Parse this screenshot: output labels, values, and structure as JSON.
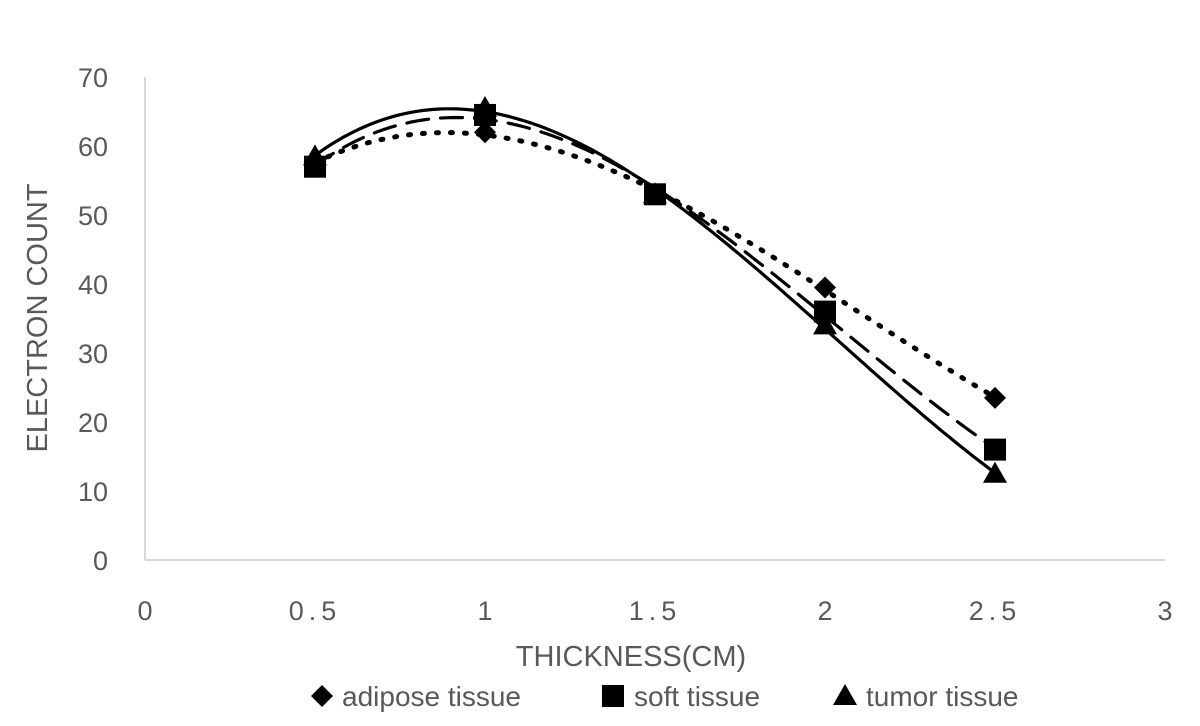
{
  "chart_data": {
    "type": "scatter",
    "title": "",
    "xlabel": "THICKNESS(CM)",
    "ylabel": "ELECTRON COUNT",
    "xlim": [
      0,
      3
    ],
    "ylim": [
      0,
      70
    ],
    "xticks": [
      0,
      0.5,
      1,
      1.5,
      2,
      2.5,
      3
    ],
    "xtick_labels": [
      "0",
      "0.5",
      "1",
      "1.5",
      "2",
      "2.5",
      "3"
    ],
    "yticks": [
      0,
      10,
      20,
      30,
      40,
      50,
      60,
      70
    ],
    "ytick_labels": [
      "0",
      "10",
      "20",
      "30",
      "40",
      "50",
      "60",
      "70"
    ],
    "grid": false,
    "legend_position": "bottom",
    "x": [
      0.5,
      1,
      1.5,
      2,
      2.5
    ],
    "series": [
      {
        "name": "adipose tissue",
        "marker": "diamond",
        "line": "dotted",
        "values": [
          57.5,
          62,
          53,
          39.5,
          23.5
        ]
      },
      {
        "name": "soft tissue",
        "marker": "square",
        "line": "dashed",
        "values": [
          57,
          64.5,
          53,
          36,
          16
        ]
      },
      {
        "name": "tumor tissue",
        "marker": "triangle",
        "line": "solid",
        "values": [
          58.5,
          65.5,
          53,
          34,
          12.5
        ]
      }
    ],
    "trendlines": "polynomial"
  }
}
